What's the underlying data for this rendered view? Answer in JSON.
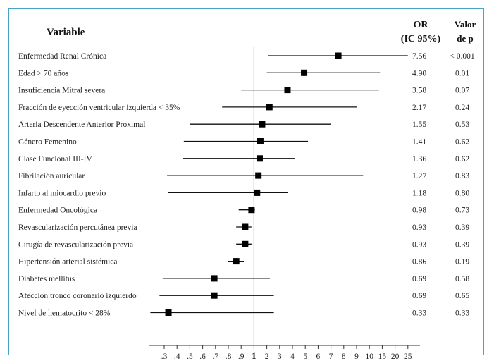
{
  "chart_data": {
    "type": "forest",
    "headers": {
      "variable": "Variable",
      "or_line1": "OR",
      "or_line2": "(IC 95%)",
      "p_line1": "Valor",
      "p_line2": "de p"
    },
    "x_scale": "log",
    "reference_value": 1,
    "ticks": [
      {
        "value": 0.3,
        "label": ".3"
      },
      {
        "value": 0.4,
        "label": ".4"
      },
      {
        "value": 0.5,
        "label": ".5"
      },
      {
        "value": 0.6,
        "label": ".6"
      },
      {
        "value": 0.7,
        "label": ".7"
      },
      {
        "value": 0.8,
        "label": ".8"
      },
      {
        "value": 0.9,
        "label": ".9"
      },
      {
        "value": 1,
        "label": "1"
      },
      {
        "value": 2,
        "label": "2"
      },
      {
        "value": 3,
        "label": "3"
      },
      {
        "value": 4,
        "label": "4"
      },
      {
        "value": 5,
        "label": "5"
      },
      {
        "value": 6,
        "label": "6"
      },
      {
        "value": 7,
        "label": "7"
      },
      {
        "value": 8,
        "label": "8"
      },
      {
        "value": 9,
        "label": "9"
      },
      {
        "value": 10,
        "label": "10"
      },
      {
        "value": 15,
        "label": "15"
      },
      {
        "value": 20,
        "label": "20"
      },
      {
        "value": 25,
        "label": "25"
      }
    ],
    "rows": [
      {
        "label": "Enfermedad Renal Crónica",
        "or": 7.56,
        "or_text": "7.56",
        "lo": 2.1,
        "hi": 25,
        "p": "< 0.001"
      },
      {
        "label": "Edad > 70 años",
        "or": 4.9,
        "or_text": "4.90",
        "lo": 2.0,
        "hi": 14,
        "p": "0.01"
      },
      {
        "label": "Insuficiencia Mitral severa",
        "or": 3.58,
        "or_text": "3.58",
        "lo": 0.9,
        "hi": 13.5,
        "p": "0.07"
      },
      {
        "label": "Fracción de eyección ventricular izquierda  < 35%",
        "or": 2.17,
        "or_text": "2.17",
        "lo": 0.75,
        "hi": 9,
        "p": "0.24"
      },
      {
        "label": "Arteria Descendente Anterior Proximal",
        "or": 1.55,
        "or_text": "1.55",
        "lo": 0.5,
        "hi": 7,
        "p": "0.53"
      },
      {
        "label": "Género Femenino",
        "or": 1.41,
        "or_text": "1.41",
        "lo": 0.45,
        "hi": 5.2,
        "p": "0.62"
      },
      {
        "label": "Clase Funcional III-IV",
        "or": 1.36,
        "or_text": "1.36",
        "lo": 0.44,
        "hi": 4.2,
        "p": "0.62"
      },
      {
        "label": "Fibrilación auricular",
        "or": 1.27,
        "or_text": "1.27",
        "lo": 0.32,
        "hi": 9.5,
        "p": "0.83"
      },
      {
        "label": "Infarto al miocardio previo",
        "or": 1.18,
        "or_text": "1.18",
        "lo": 0.33,
        "hi": 3.6,
        "p": "0.80"
      },
      {
        "label": "Enfermedad Oncológica",
        "or": 0.98,
        "or_text": "0.98",
        "lo": 0.88,
        "hi": 1.05,
        "p": "0.73"
      },
      {
        "label": "Revascularización percutánea previa",
        "or": 0.93,
        "or_text": "0.93",
        "lo": 0.86,
        "hi": 0.98,
        "p": "0.39"
      },
      {
        "label": "Cirugía de revascularización previa",
        "or": 0.93,
        "or_text": "0.93",
        "lo": 0.86,
        "hi": 0.98,
        "p": "0.39"
      },
      {
        "label": "Hipertensión arterial sistémica",
        "or": 0.86,
        "or_text": "0.86",
        "lo": 0.8,
        "hi": 0.92,
        "p": "0.19"
      },
      {
        "label": "Diabetes mellitus",
        "or": 0.69,
        "or_text": "0.69",
        "lo": 0.29,
        "hi": 2.2,
        "p": "0.58"
      },
      {
        "label": "Afección tronco coronario izquierdo",
        "or": 0.69,
        "or_text": "0.69",
        "lo": 0.27,
        "hi": 2.5,
        "p": "0.65"
      },
      {
        "label": "Nivel de hematocrito  < 28%",
        "or": 0.33,
        "or_text": "0.33",
        "lo": 0.22,
        "hi": 2.5,
        "p": "0.33"
      }
    ]
  }
}
